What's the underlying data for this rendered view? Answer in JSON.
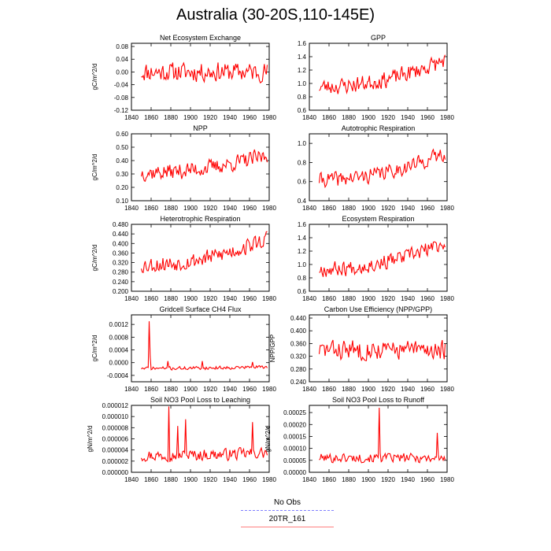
{
  "figure_title": "Australia (30-20S,110-145E)",
  "legend": [
    {
      "label": "No Obs",
      "color": "#8080ff",
      "style": "dashed"
    },
    {
      "label": "20TR_161",
      "color": "#ff8080",
      "style": "solid"
    }
  ],
  "line_color": "#ff0000",
  "chart_data": [
    {
      "type": "line",
      "title": "Net Ecosystem Exchange",
      "ylabel": "gC/m^2/d",
      "xlim": [
        1840,
        1980
      ],
      "ylim": [
        -0.12,
        0.09
      ],
      "xticks": [
        1840,
        1860,
        1880,
        1900,
        1920,
        1940,
        1960,
        1980
      ],
      "yticks": [
        -0.12,
        -0.08,
        -0.04,
        0.0,
        0.04,
        0.08
      ],
      "ytick_labels": [
        "-0.12",
        "-0.08",
        "-0.04",
        "0.00",
        "0.04",
        "0.08"
      ],
      "x_start": 1850,
      "x_end": 1978,
      "base": 0.0,
      "trend": 0.0,
      "amp": 0.035,
      "seed": 11
    },
    {
      "type": "line",
      "title": "GPP",
      "ylabel": "",
      "xlim": [
        1840,
        1980
      ],
      "ylim": [
        0.6,
        1.6
      ],
      "xticks": [
        1840,
        1860,
        1880,
        1900,
        1920,
        1940,
        1960,
        1980
      ],
      "yticks": [
        0.6,
        0.8,
        1.0,
        1.2,
        1.4,
        1.6
      ],
      "ytick_labels": [
        "0.6",
        "0.8",
        "1.0",
        "1.2",
        "1.4",
        "1.6"
      ],
      "x_start": 1850,
      "x_end": 1978,
      "base": 0.95,
      "trend": 0.4,
      "amp": 0.14,
      "seed": 23
    },
    {
      "type": "line",
      "title": "NPP",
      "ylabel": "gC/m^2/d",
      "xlim": [
        1840,
        1980
      ],
      "ylim": [
        0.1,
        0.6
      ],
      "xticks": [
        1840,
        1860,
        1880,
        1900,
        1920,
        1940,
        1960,
        1980
      ],
      "yticks": [
        0.1,
        0.2,
        0.3,
        0.4,
        0.5,
        0.6
      ],
      "ytick_labels": [
        "0.10",
        "0.20",
        "0.30",
        "0.40",
        "0.50",
        "0.60"
      ],
      "x_start": 1850,
      "x_end": 1978,
      "base": 0.31,
      "trend": 0.13,
      "amp": 0.07,
      "seed": 37
    },
    {
      "type": "line",
      "title": "Autotrophic Respiration",
      "ylabel": "",
      "xlim": [
        1840,
        1980
      ],
      "ylim": [
        0.4,
        1.1
      ],
      "xticks": [
        1840,
        1860,
        1880,
        1900,
        1920,
        1940,
        1960,
        1980
      ],
      "yticks": [
        0.4,
        0.6,
        0.8,
        1.0
      ],
      "ytick_labels": [
        "0.4",
        "0.6",
        "0.8",
        "1.0"
      ],
      "x_start": 1850,
      "x_end": 1978,
      "base": 0.62,
      "trend": 0.28,
      "amp": 0.09,
      "seed": 41
    },
    {
      "type": "line",
      "title": "Heterotrophic Respiration",
      "ylabel": "gC/m^2/d",
      "xlim": [
        1840,
        1980
      ],
      "ylim": [
        0.2,
        0.48
      ],
      "xticks": [
        1840,
        1860,
        1880,
        1900,
        1920,
        1940,
        1960,
        1980
      ],
      "yticks": [
        0.2,
        0.24,
        0.28,
        0.32,
        0.36,
        0.4,
        0.44,
        0.48
      ],
      "ytick_labels": [
        "0.200",
        "0.240",
        "0.280",
        "0.320",
        "0.360",
        "0.400",
        "0.440",
        "0.480"
      ],
      "x_start": 1850,
      "x_end": 1978,
      "base": 0.31,
      "trend": 0.11,
      "amp": 0.04,
      "seed": 53
    },
    {
      "type": "line",
      "title": "Ecosystem Respiration",
      "ylabel": "",
      "xlim": [
        1840,
        1980
      ],
      "ylim": [
        0.6,
        1.6
      ],
      "xticks": [
        1840,
        1860,
        1880,
        1900,
        1920,
        1940,
        1960,
        1980
      ],
      "yticks": [
        0.6,
        0.8,
        1.0,
        1.2,
        1.4,
        1.6
      ],
      "ytick_labels": [
        "0.6",
        "0.8",
        "1.0",
        "1.2",
        "1.4",
        "1.6"
      ],
      "x_start": 1850,
      "x_end": 1978,
      "base": 0.93,
      "trend": 0.4,
      "amp": 0.13,
      "seed": 67
    },
    {
      "type": "line",
      "title": "Gridcell Surface CH4 Flux",
      "ylabel": "gC/m^2/d",
      "xlim": [
        1840,
        1980
      ],
      "ylim": [
        -0.0006,
        0.0015
      ],
      "xticks": [
        1840,
        1860,
        1880,
        1900,
        1920,
        1940,
        1960,
        1980
      ],
      "yticks": [
        -0.0004,
        0.0,
        0.0004,
        0.0008,
        0.0012
      ],
      "ytick_labels": [
        "-0.0004",
        "0.0000",
        "0.0004",
        "0.0008",
        "0.0012"
      ],
      "x_start": 1850,
      "x_end": 1978,
      "base": -0.00018,
      "trend": 5e-05,
      "amp": 6e-05,
      "seed": 71,
      "spikes": [
        [
          1858,
          0.0013
        ],
        [
          1859,
          0.0002
        ],
        [
          1877,
          5e-05
        ],
        [
          1912,
          5e-05
        ],
        [
          1963,
          2e-05
        ]
      ]
    },
    {
      "type": "line",
      "title": "Carbon Use Efficiency (NPP/GPP)",
      "ylabel": "NPP/GPP",
      "xlim": [
        1840,
        1980
      ],
      "ylim": [
        0.24,
        0.45
      ],
      "xticks": [
        1840,
        1860,
        1880,
        1900,
        1920,
        1940,
        1960,
        1980
      ],
      "yticks": [
        0.24,
        0.28,
        0.32,
        0.36,
        0.4,
        0.44
      ],
      "ytick_labels": [
        "0.240",
        "0.280",
        "0.320",
        "0.360",
        "0.400",
        "0.440"
      ],
      "x_start": 1850,
      "x_end": 1978,
      "base": 0.34,
      "trend": 0.0,
      "amp": 0.035,
      "seed": 83
    },
    {
      "type": "line",
      "title": "Soil NO3 Pool Loss to Leaching",
      "ylabel": "gN/m^2/d",
      "xlim": [
        1840,
        1980
      ],
      "ylim": [
        0.0,
        1.2e-05
      ],
      "xticks": [
        1840,
        1860,
        1880,
        1900,
        1920,
        1940,
        1960,
        1980
      ],
      "yticks": [
        0.0,
        2e-06,
        4e-06,
        6e-06,
        8e-06,
        1e-05,
        1.2e-05
      ],
      "ytick_labels": [
        "0.000000",
        "0.000002",
        "0.000004",
        "0.000006",
        "0.000008",
        "0.000010",
        "0.000012"
      ],
      "x_start": 1850,
      "x_end": 1978,
      "base": 3e-06,
      "trend": 5e-07,
      "amp": 1.2e-06,
      "seed": 97,
      "spikes": [
        [
          1878,
          1.18e-05
        ],
        [
          1887,
          8.3e-06
        ],
        [
          1895,
          9.5e-06
        ],
        [
          1963,
          9e-06
        ]
      ]
    },
    {
      "type": "line",
      "title": "Soil NO3 Pool Loss to Runoff",
      "ylabel": "gN/m^2/d",
      "xlim": [
        1840,
        1980
      ],
      "ylim": [
        0.0,
        0.00028
      ],
      "xticks": [
        1840,
        1860,
        1880,
        1900,
        1920,
        1940,
        1960,
        1980
      ],
      "yticks": [
        0.0,
        5e-05,
        0.0001,
        0.00015,
        0.0002,
        0.00025
      ],
      "ytick_labels": [
        "0.00000",
        "0.00005",
        "0.00010",
        "0.00015",
        "0.00020",
        "0.00025"
      ],
      "x_start": 1850,
      "x_end": 1978,
      "base": 6e-05,
      "trend": 0.0,
      "amp": 2.2e-05,
      "seed": 101,
      "spikes": [
        [
          1911,
          0.00027
        ],
        [
          1912,
          8e-05
        ],
        [
          1970,
          0.000165
        ]
      ]
    }
  ]
}
